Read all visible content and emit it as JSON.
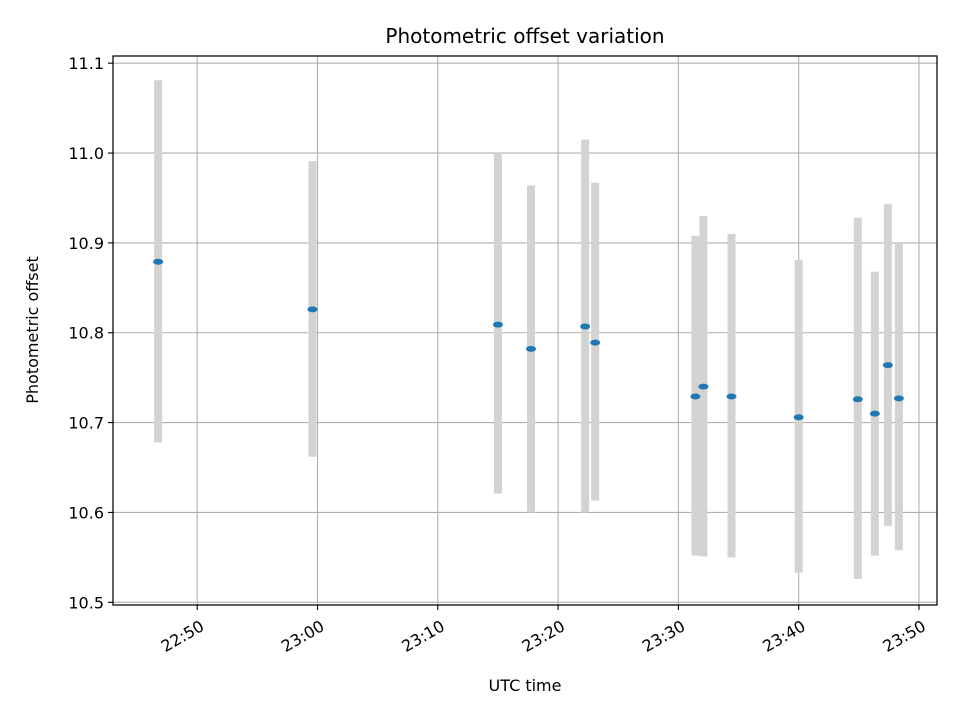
{
  "chart_data": {
    "type": "scatter",
    "title": "Photometric offset variation",
    "xlabel": "UTC time",
    "ylabel": "Photometric offset",
    "xlim": [
      "22:43:00",
      "23:51:30"
    ],
    "ylim": [
      10.497,
      11.108
    ],
    "x_ticks": [
      "22:50",
      "23:00",
      "23:10",
      "23:20",
      "23:30",
      "23:40",
      "23:50"
    ],
    "y_ticks": [
      10.5,
      10.6,
      10.7,
      10.8,
      10.9,
      11.0,
      11.1
    ],
    "y_tick_labels": [
      "10.5",
      "10.6",
      "10.7",
      "10.8",
      "10.9",
      "11.0",
      "11.1"
    ],
    "grid": true,
    "series": [
      {
        "points": [
          {
            "x": "22:46:45",
            "y": 10.879,
            "ylow": 10.678,
            "yhigh": 11.081
          },
          {
            "x": "22:59:35",
            "y": 10.826,
            "ylow": 10.662,
            "yhigh": 10.991
          },
          {
            "x": "23:15:00",
            "y": 10.809,
            "ylow": 10.621,
            "yhigh": 10.999
          },
          {
            "x": "23:17:45",
            "y": 10.782,
            "ylow": 10.6,
            "yhigh": 10.964
          },
          {
            "x": "23:22:15",
            "y": 10.807,
            "ylow": 10.6,
            "yhigh": 11.015
          },
          {
            "x": "23:23:05",
            "y": 10.789,
            "ylow": 10.613,
            "yhigh": 10.967
          },
          {
            "x": "23:31:25",
            "y": 10.729,
            "ylow": 10.552,
            "yhigh": 10.908
          },
          {
            "x": "23:32:05",
            "y": 10.74,
            "ylow": 10.551,
            "yhigh": 10.93
          },
          {
            "x": "23:34:25",
            "y": 10.729,
            "ylow": 10.55,
            "yhigh": 10.91
          },
          {
            "x": "23:40:00",
            "y": 10.706,
            "ylow": 10.533,
            "yhigh": 10.881
          },
          {
            "x": "23:44:55",
            "y": 10.726,
            "ylow": 10.526,
            "yhigh": 10.928
          },
          {
            "x": "23:46:20",
            "y": 10.71,
            "ylow": 10.552,
            "yhigh": 10.868
          },
          {
            "x": "23:47:25",
            "y": 10.764,
            "ylow": 10.585,
            "yhigh": 10.943
          },
          {
            "x": "23:48:20",
            "y": 10.727,
            "ylow": 10.558,
            "yhigh": 10.9
          }
        ]
      }
    ],
    "colors": {
      "point": "#1f77b4",
      "errorbar": "#d3d3d3",
      "grid": "#b0b0b0",
      "axis": "#000000"
    }
  }
}
